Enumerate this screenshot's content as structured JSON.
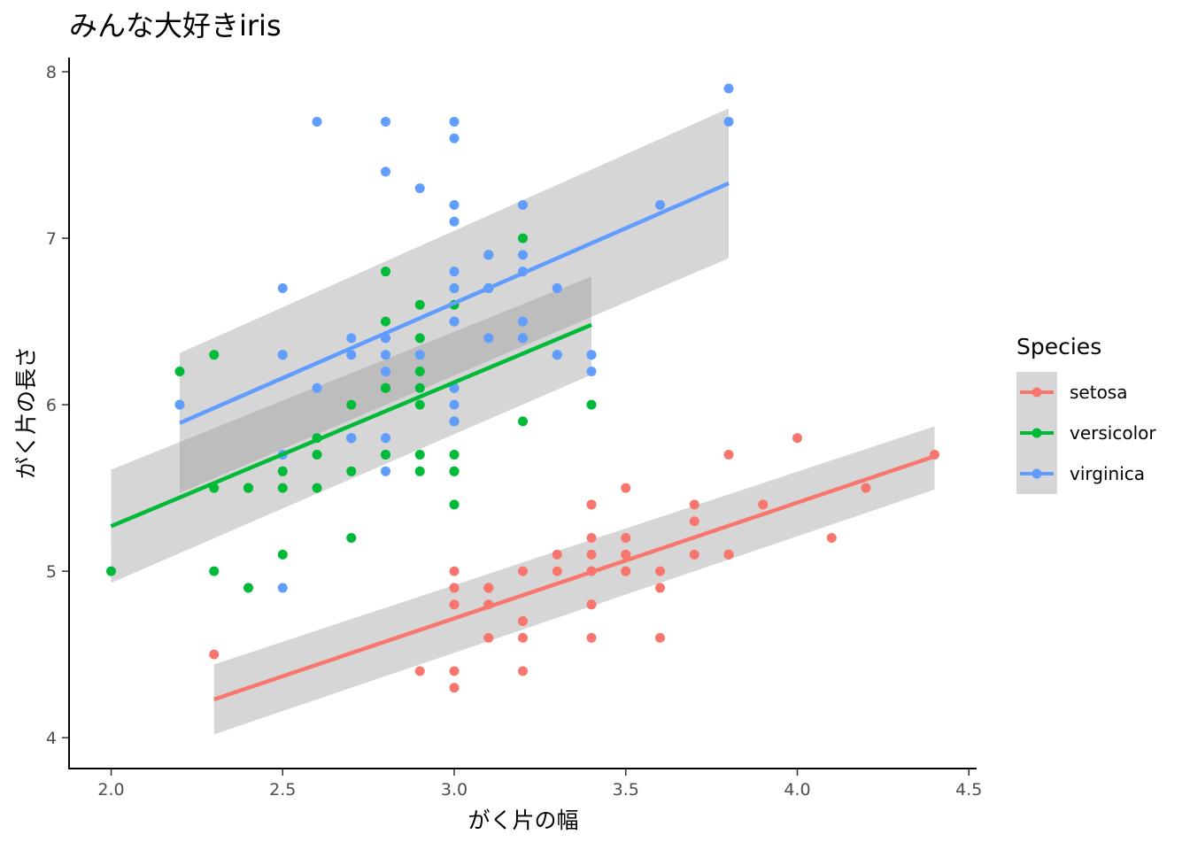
{
  "chart_data": {
    "type": "scatter",
    "title": "みんな大好きiris",
    "xlabel": "がく片の幅",
    "ylabel": "がく片の長さ",
    "xlim": [
      1.88,
      4.52
    ],
    "ylim": [
      3.82,
      8.08
    ],
    "x_ticks": [
      "2.0",
      "2.5",
      "3.0",
      "3.5",
      "4.0",
      "4.5"
    ],
    "y_ticks": [
      "4",
      "5",
      "6",
      "7",
      "8"
    ],
    "x_tick_values": [
      2.0,
      2.5,
      3.0,
      3.5,
      4.0,
      4.5
    ],
    "y_tick_values": [
      4,
      5,
      6,
      7,
      8
    ],
    "grid": false,
    "legend_position": "right",
    "legend_title": "Species",
    "series": [
      {
        "name": "setosa",
        "color": "#F8766D",
        "points": [
          [
            3.5,
            5.1
          ],
          [
            3.0,
            4.9
          ],
          [
            3.2,
            4.7
          ],
          [
            3.1,
            4.6
          ],
          [
            3.6,
            5.0
          ],
          [
            3.9,
            5.4
          ],
          [
            3.4,
            4.6
          ],
          [
            3.4,
            5.0
          ],
          [
            2.9,
            4.4
          ],
          [
            3.1,
            4.9
          ],
          [
            3.7,
            5.4
          ],
          [
            3.4,
            4.8
          ],
          [
            3.0,
            4.8
          ],
          [
            3.0,
            4.3
          ],
          [
            4.0,
            5.8
          ],
          [
            4.4,
            5.7
          ],
          [
            3.9,
            5.4
          ],
          [
            3.5,
            5.1
          ],
          [
            3.8,
            5.7
          ],
          [
            3.8,
            5.1
          ],
          [
            3.4,
            5.4
          ],
          [
            3.7,
            5.1
          ],
          [
            3.6,
            4.6
          ],
          [
            3.3,
            5.1
          ],
          [
            3.4,
            4.8
          ],
          [
            3.0,
            5.0
          ],
          [
            3.4,
            5.0
          ],
          [
            3.5,
            5.2
          ],
          [
            3.4,
            5.2
          ],
          [
            3.2,
            4.7
          ],
          [
            3.1,
            4.8
          ],
          [
            3.4,
            5.4
          ],
          [
            4.1,
            5.2
          ],
          [
            4.2,
            5.5
          ],
          [
            3.1,
            4.9
          ],
          [
            3.2,
            5.0
          ],
          [
            3.5,
            5.5
          ],
          [
            3.6,
            4.9
          ],
          [
            3.0,
            4.4
          ],
          [
            3.4,
            5.1
          ],
          [
            3.5,
            5.0
          ],
          [
            2.3,
            4.5
          ],
          [
            3.2,
            4.4
          ],
          [
            3.5,
            5.0
          ],
          [
            3.8,
            5.1
          ],
          [
            3.0,
            4.8
          ],
          [
            3.8,
            5.1
          ],
          [
            3.2,
            4.6
          ],
          [
            3.7,
            5.3
          ],
          [
            3.3,
            5.0
          ]
        ],
        "fit": {
          "x": [
            2.3,
            4.4
          ],
          "y": [
            4.23,
            5.69
          ],
          "ci_lower": [
            4.02,
            5.49
          ],
          "ci_upper": [
            4.44,
            5.87
          ]
        }
      },
      {
        "name": "versicolor",
        "color": "#00BA38",
        "points": [
          [
            3.2,
            7.0
          ],
          [
            3.2,
            6.4
          ],
          [
            3.1,
            6.9
          ],
          [
            2.3,
            5.5
          ],
          [
            2.8,
            6.5
          ],
          [
            2.8,
            5.7
          ],
          [
            3.3,
            6.3
          ],
          [
            2.4,
            4.9
          ],
          [
            2.9,
            6.6
          ],
          [
            2.7,
            5.2
          ],
          [
            2.0,
            5.0
          ],
          [
            3.0,
            5.9
          ],
          [
            2.2,
            6.0
          ],
          [
            2.9,
            6.1
          ],
          [
            2.9,
            5.6
          ],
          [
            3.1,
            6.7
          ],
          [
            3.0,
            5.6
          ],
          [
            2.7,
            5.8
          ],
          [
            2.2,
            6.2
          ],
          [
            2.5,
            5.6
          ],
          [
            3.2,
            5.9
          ],
          [
            2.8,
            6.1
          ],
          [
            2.5,
            6.3
          ],
          [
            2.8,
            6.1
          ],
          [
            2.9,
            6.4
          ],
          [
            3.0,
            6.6
          ],
          [
            2.8,
            6.8
          ],
          [
            3.0,
            6.7
          ],
          [
            2.9,
            6.0
          ],
          [
            2.6,
            5.7
          ],
          [
            2.4,
            5.5
          ],
          [
            2.4,
            5.5
          ],
          [
            2.7,
            5.8
          ],
          [
            2.7,
            6.0
          ],
          [
            3.0,
            5.4
          ],
          [
            3.4,
            6.0
          ],
          [
            3.1,
            6.7
          ],
          [
            2.3,
            6.3
          ],
          [
            3.0,
            5.6
          ],
          [
            2.5,
            5.5
          ],
          [
            2.6,
            5.5
          ],
          [
            3.0,
            6.1
          ],
          [
            2.6,
            5.8
          ],
          [
            2.3,
            5.0
          ],
          [
            2.7,
            5.6
          ],
          [
            3.0,
            5.7
          ],
          [
            2.9,
            5.7
          ],
          [
            2.9,
            6.2
          ],
          [
            2.5,
            5.1
          ],
          [
            2.8,
            5.7
          ]
        ],
        "fit": {
          "x": [
            2.0,
            3.4
          ],
          "y": [
            5.27,
            6.48
          ],
          "ci_lower": [
            4.93,
            6.18
          ],
          "ci_upper": [
            5.61,
            6.77
          ]
        }
      },
      {
        "name": "virginica",
        "color": "#619CFF",
        "points": [
          [
            3.3,
            6.3
          ],
          [
            2.7,
            5.8
          ],
          [
            3.0,
            7.1
          ],
          [
            2.9,
            6.3
          ],
          [
            3.0,
            6.5
          ],
          [
            3.0,
            7.6
          ],
          [
            2.5,
            4.9
          ],
          [
            2.9,
            7.3
          ],
          [
            2.5,
            6.7
          ],
          [
            3.6,
            7.2
          ],
          [
            3.2,
            6.5
          ],
          [
            2.7,
            6.4
          ],
          [
            3.0,
            6.8
          ],
          [
            2.5,
            5.7
          ],
          [
            2.8,
            5.8
          ],
          [
            3.2,
            6.4
          ],
          [
            3.0,
            6.5
          ],
          [
            3.8,
            7.7
          ],
          [
            2.6,
            7.7
          ],
          [
            2.2,
            6.0
          ],
          [
            3.2,
            6.9
          ],
          [
            2.8,
            5.6
          ],
          [
            2.8,
            7.7
          ],
          [
            2.7,
            6.3
          ],
          [
            3.3,
            6.7
          ],
          [
            3.2,
            7.2
          ],
          [
            2.8,
            6.2
          ],
          [
            3.0,
            6.1
          ],
          [
            2.8,
            6.4
          ],
          [
            3.0,
            7.2
          ],
          [
            2.8,
            7.4
          ],
          [
            3.8,
            7.9
          ],
          [
            2.8,
            6.4
          ],
          [
            2.8,
            6.3
          ],
          [
            2.6,
            6.1
          ],
          [
            3.0,
            7.7
          ],
          [
            3.4,
            6.3
          ],
          [
            3.1,
            6.4
          ],
          [
            3.0,
            6.0
          ],
          [
            3.1,
            6.9
          ],
          [
            3.1,
            6.7
          ],
          [
            3.1,
            6.9
          ],
          [
            2.7,
            5.8
          ],
          [
            3.2,
            6.8
          ],
          [
            3.3,
            6.7
          ],
          [
            3.0,
            6.7
          ],
          [
            2.5,
            6.3
          ],
          [
            3.0,
            6.5
          ],
          [
            3.4,
            6.2
          ],
          [
            3.0,
            5.9
          ]
        ],
        "fit": {
          "x": [
            2.2,
            3.8
          ],
          "y": [
            5.89,
            7.33
          ],
          "ci_lower": [
            5.47,
            6.88
          ],
          "ci_upper": [
            6.31,
            7.78
          ]
        }
      }
    ]
  }
}
